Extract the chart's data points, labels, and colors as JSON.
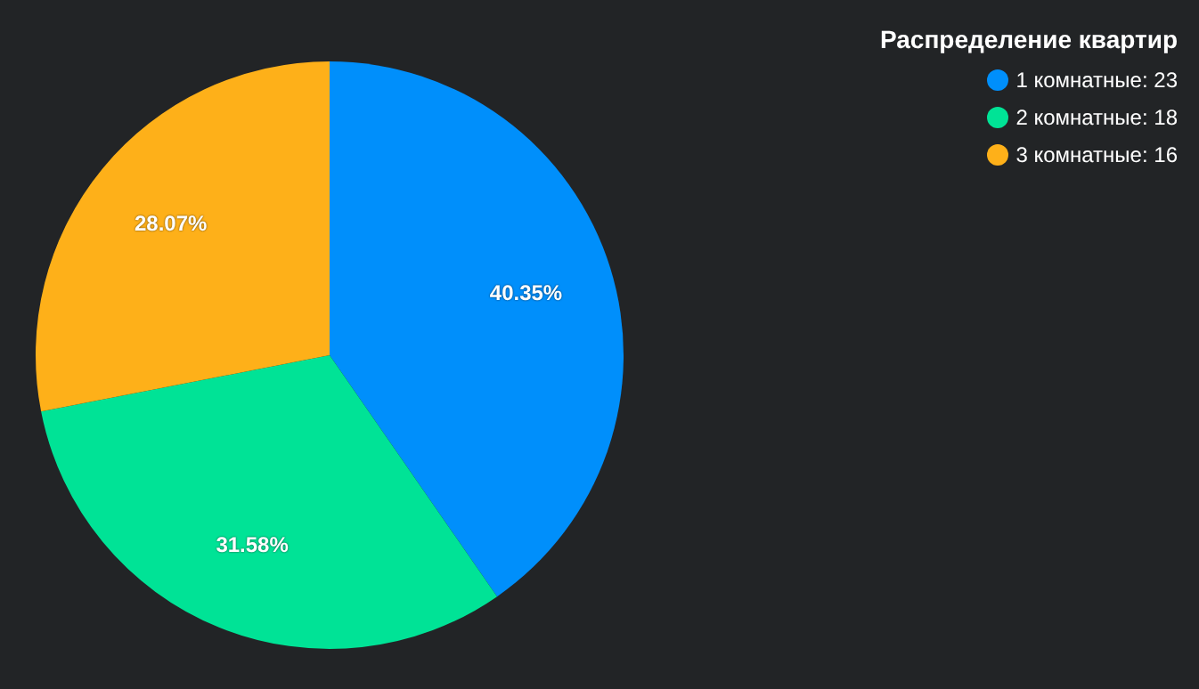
{
  "chart_data": {
    "type": "pie",
    "legend_title": "Распределение квартир",
    "legend": "top right",
    "categories": [
      "1 комнатные: 23",
      "2 комнатные: 18",
      "3 комнатные: 16"
    ],
    "values": [
      40.35,
      31.58,
      28.07
    ],
    "colors": [
      "#008ffb",
      "#00e396",
      "#feb019"
    ],
    "value_labels": [
      "40.35%",
      "31.58%",
      "28.07%"
    ]
  }
}
